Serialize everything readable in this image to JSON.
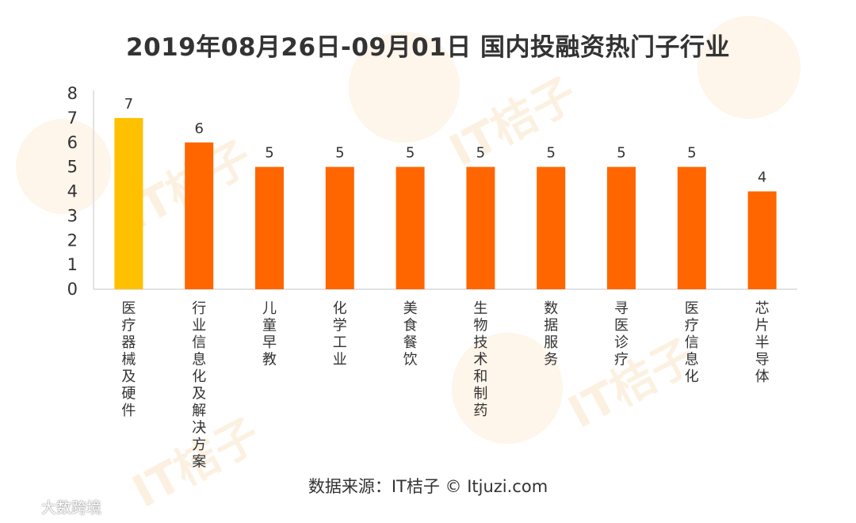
{
  "title": "2019年08月26日-09月01日 国内投融资热门子行业",
  "source": "数据来源：IT桔子 © Itjuzi.com",
  "watermark": "IT桔子",
  "footer_brand": "大数跨境",
  "colors": {
    "highlight": "#FFC000",
    "bar": "#FF6600",
    "axis": "#D9D9D9"
  },
  "chart_data": {
    "type": "bar",
    "categories": [
      "医疗器械及硬件",
      "行业信息化及解决方案",
      "儿童早教",
      "化学工业",
      "美食餐饮",
      "生物技术和制药",
      "数据服务",
      "寻医诊疗",
      "医疗信息化",
      "芯片半导体"
    ],
    "values": [
      7,
      6,
      5,
      5,
      5,
      5,
      5,
      5,
      5,
      4
    ],
    "highlight_index": 0,
    "ylim": [
      0,
      8
    ],
    "yticks": [
      0,
      1,
      2,
      3,
      4,
      5,
      6,
      7,
      8
    ],
    "data_labels": true,
    "grid": false,
    "legend": "none"
  }
}
